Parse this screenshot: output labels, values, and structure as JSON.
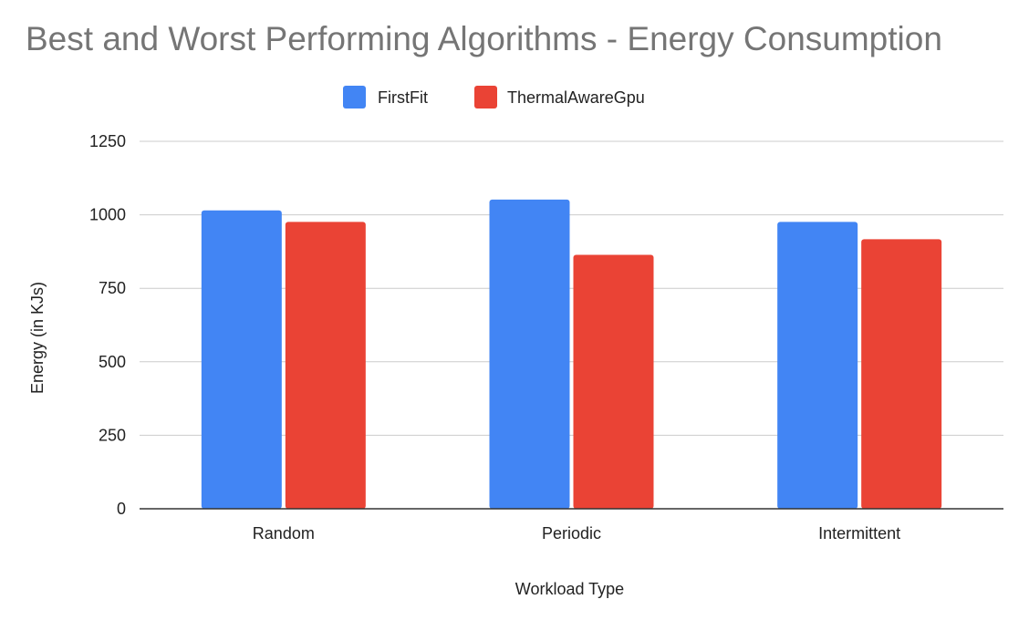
{
  "chart_data": {
    "type": "bar",
    "title": "Best and Worst Performing Algorithms - Energy Consumption",
    "xlabel": "Workload Type",
    "ylabel": "Energy (in KJs)",
    "categories": [
      "Random",
      "Periodic",
      "Intermittent"
    ],
    "series": [
      {
        "name": "FirstFit",
        "color": "#4285f4",
        "values": [
          1015,
          1052,
          976
        ]
      },
      {
        "name": "ThermalAwareGpu",
        "color": "#ea4335",
        "values": [
          976,
          864,
          917
        ]
      }
    ],
    "ylim": [
      0,
      1250
    ],
    "yticks": [
      "0",
      "250",
      "500",
      "750",
      "1000",
      "1250"
    ],
    "grid": true,
    "legend_position": "top"
  }
}
